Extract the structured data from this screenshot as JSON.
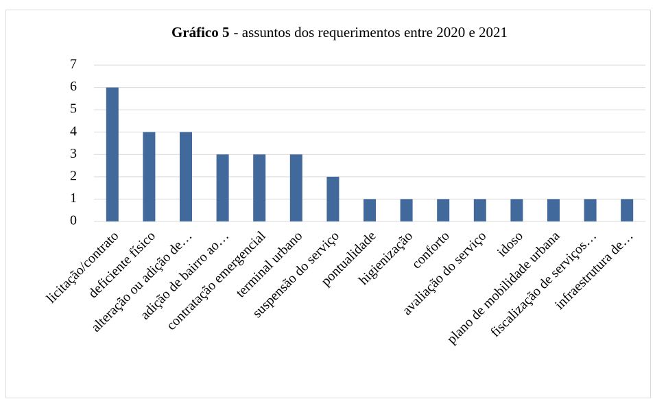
{
  "chart_data": {
    "type": "bar",
    "title": [
      "Gráfico 5",
      "- assuntos dos requerimentos entre 2020 e 2021"
    ],
    "categories": [
      "licitação/contrato",
      "deficiente físico",
      "alteração ou adição de…",
      "adição de bairro ao…",
      "contratação emergencial",
      "terminal urbano",
      "suspensão do serviço",
      "pontualidade",
      "higienização",
      "conforto",
      "avaliação do serviço",
      "idoso",
      "plano de mobilidade urbana",
      "fiscalização de serviços…",
      "infraestrutura de…"
    ],
    "values": [
      6,
      4,
      4,
      3,
      3,
      3,
      2,
      1,
      1,
      1,
      1,
      1,
      1,
      1,
      1
    ],
    "color": "#41699c",
    "ylim": [
      0,
      7
    ],
    "yticks": [
      0,
      1,
      2,
      3,
      4,
      5,
      6,
      7
    ],
    "grid": true
  }
}
